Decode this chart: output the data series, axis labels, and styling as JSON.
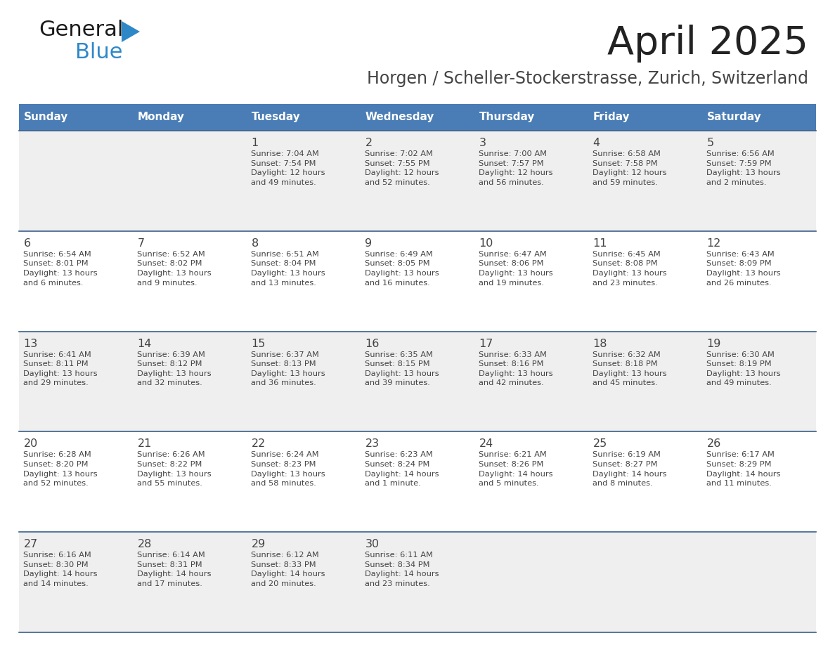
{
  "title": "April 2025",
  "subtitle": "Horgen / Scheller-Stockerstrasse, Zurich, Switzerland",
  "days_of_week": [
    "Sunday",
    "Monday",
    "Tuesday",
    "Wednesday",
    "Thursday",
    "Friday",
    "Saturday"
  ],
  "header_bg": "#4a7db5",
  "header_text": "#ffffff",
  "row_bg_light": "#efefef",
  "row_bg_white": "#ffffff",
  "border_color": "#3a5f8a",
  "text_color": "#444444",
  "title_color": "#222222",
  "subtitle_color": "#444444",
  "calendar": [
    [
      {
        "day": "",
        "info": ""
      },
      {
        "day": "",
        "info": ""
      },
      {
        "day": "1",
        "info": "Sunrise: 7:04 AM\nSunset: 7:54 PM\nDaylight: 12 hours\nand 49 minutes."
      },
      {
        "day": "2",
        "info": "Sunrise: 7:02 AM\nSunset: 7:55 PM\nDaylight: 12 hours\nand 52 minutes."
      },
      {
        "day": "3",
        "info": "Sunrise: 7:00 AM\nSunset: 7:57 PM\nDaylight: 12 hours\nand 56 minutes."
      },
      {
        "day": "4",
        "info": "Sunrise: 6:58 AM\nSunset: 7:58 PM\nDaylight: 12 hours\nand 59 minutes."
      },
      {
        "day": "5",
        "info": "Sunrise: 6:56 AM\nSunset: 7:59 PM\nDaylight: 13 hours\nand 2 minutes."
      }
    ],
    [
      {
        "day": "6",
        "info": "Sunrise: 6:54 AM\nSunset: 8:01 PM\nDaylight: 13 hours\nand 6 minutes."
      },
      {
        "day": "7",
        "info": "Sunrise: 6:52 AM\nSunset: 8:02 PM\nDaylight: 13 hours\nand 9 minutes."
      },
      {
        "day": "8",
        "info": "Sunrise: 6:51 AM\nSunset: 8:04 PM\nDaylight: 13 hours\nand 13 minutes."
      },
      {
        "day": "9",
        "info": "Sunrise: 6:49 AM\nSunset: 8:05 PM\nDaylight: 13 hours\nand 16 minutes."
      },
      {
        "day": "10",
        "info": "Sunrise: 6:47 AM\nSunset: 8:06 PM\nDaylight: 13 hours\nand 19 minutes."
      },
      {
        "day": "11",
        "info": "Sunrise: 6:45 AM\nSunset: 8:08 PM\nDaylight: 13 hours\nand 23 minutes."
      },
      {
        "day": "12",
        "info": "Sunrise: 6:43 AM\nSunset: 8:09 PM\nDaylight: 13 hours\nand 26 minutes."
      }
    ],
    [
      {
        "day": "13",
        "info": "Sunrise: 6:41 AM\nSunset: 8:11 PM\nDaylight: 13 hours\nand 29 minutes."
      },
      {
        "day": "14",
        "info": "Sunrise: 6:39 AM\nSunset: 8:12 PM\nDaylight: 13 hours\nand 32 minutes."
      },
      {
        "day": "15",
        "info": "Sunrise: 6:37 AM\nSunset: 8:13 PM\nDaylight: 13 hours\nand 36 minutes."
      },
      {
        "day": "16",
        "info": "Sunrise: 6:35 AM\nSunset: 8:15 PM\nDaylight: 13 hours\nand 39 minutes."
      },
      {
        "day": "17",
        "info": "Sunrise: 6:33 AM\nSunset: 8:16 PM\nDaylight: 13 hours\nand 42 minutes."
      },
      {
        "day": "18",
        "info": "Sunrise: 6:32 AM\nSunset: 8:18 PM\nDaylight: 13 hours\nand 45 minutes."
      },
      {
        "day": "19",
        "info": "Sunrise: 6:30 AM\nSunset: 8:19 PM\nDaylight: 13 hours\nand 49 minutes."
      }
    ],
    [
      {
        "day": "20",
        "info": "Sunrise: 6:28 AM\nSunset: 8:20 PM\nDaylight: 13 hours\nand 52 minutes."
      },
      {
        "day": "21",
        "info": "Sunrise: 6:26 AM\nSunset: 8:22 PM\nDaylight: 13 hours\nand 55 minutes."
      },
      {
        "day": "22",
        "info": "Sunrise: 6:24 AM\nSunset: 8:23 PM\nDaylight: 13 hours\nand 58 minutes."
      },
      {
        "day": "23",
        "info": "Sunrise: 6:23 AM\nSunset: 8:24 PM\nDaylight: 14 hours\nand 1 minute."
      },
      {
        "day": "24",
        "info": "Sunrise: 6:21 AM\nSunset: 8:26 PM\nDaylight: 14 hours\nand 5 minutes."
      },
      {
        "day": "25",
        "info": "Sunrise: 6:19 AM\nSunset: 8:27 PM\nDaylight: 14 hours\nand 8 minutes."
      },
      {
        "day": "26",
        "info": "Sunrise: 6:17 AM\nSunset: 8:29 PM\nDaylight: 14 hours\nand 11 minutes."
      }
    ],
    [
      {
        "day": "27",
        "info": "Sunrise: 6:16 AM\nSunset: 8:30 PM\nDaylight: 14 hours\nand 14 minutes."
      },
      {
        "day": "28",
        "info": "Sunrise: 6:14 AM\nSunset: 8:31 PM\nDaylight: 14 hours\nand 17 minutes."
      },
      {
        "day": "29",
        "info": "Sunrise: 6:12 AM\nSunset: 8:33 PM\nDaylight: 14 hours\nand 20 minutes."
      },
      {
        "day": "30",
        "info": "Sunrise: 6:11 AM\nSunset: 8:34 PM\nDaylight: 14 hours\nand 23 minutes."
      },
      {
        "day": "",
        "info": ""
      },
      {
        "day": "",
        "info": ""
      },
      {
        "day": "",
        "info": ""
      }
    ]
  ],
  "logo_text_general": "General",
  "logo_text_blue": "Blue",
  "logo_color_general": "#1a1a1a",
  "logo_color_blue": "#2e88c8",
  "logo_triangle_color": "#2e88c8"
}
